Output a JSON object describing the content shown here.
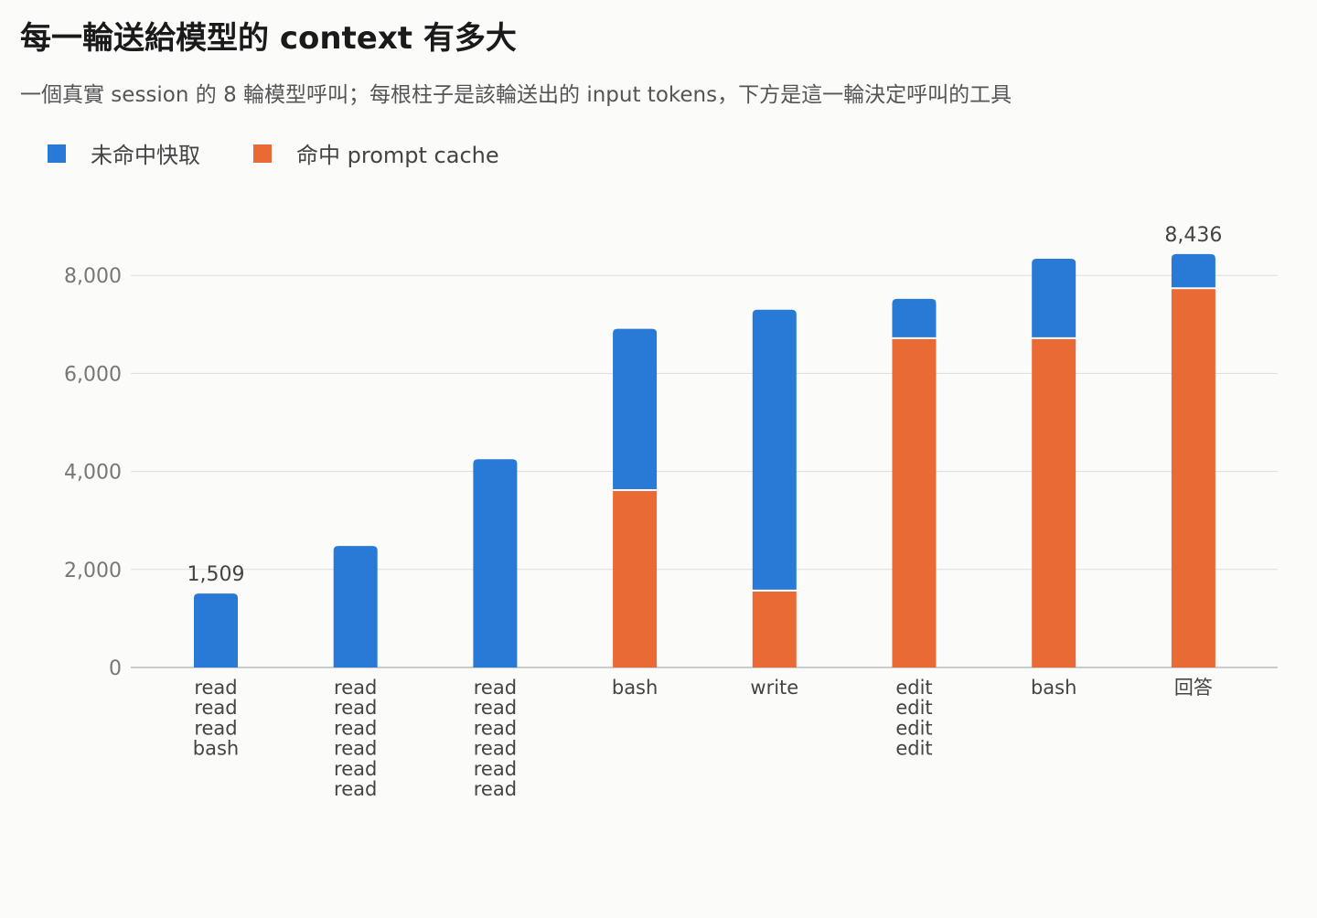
{
  "title": "每一輪送給模型的 context 有多大",
  "subtitle": "一個真實 session 的 8 輪模型呼叫；每根柱子是該輪送出的 input tokens，下方是這一輪決定呼叫的工具",
  "legend": {
    "uncached": "未命中快取",
    "cached": "命中 prompt cache"
  },
  "colors": {
    "uncached": "#2979d6",
    "cached": "#ea6a36",
    "grid": "#dddddd",
    "axis": "#bbbbbb"
  },
  "chart_data": {
    "type": "bar",
    "stacked": true,
    "title": "每一輪送給模型的 context 有多大",
    "subtitle": "一個真實 session 的 8 輪模型呼叫；每根柱子是該輪送出的 input tokens，下方是這一輪決定呼叫的工具",
    "categories": [
      [
        "read",
        "read",
        "read",
        "bash"
      ],
      [
        "read",
        "read",
        "read",
        "read",
        "read",
        "read"
      ],
      [
        "read",
        "read",
        "read",
        "read",
        "read",
        "read"
      ],
      [
        "bash"
      ],
      [
        "write"
      ],
      [
        "edit",
        "edit",
        "edit",
        "edit"
      ],
      [
        "bash"
      ],
      [
        "回答"
      ]
    ],
    "series": [
      {
        "name": "命中 prompt cache",
        "key": "cached",
        "values": [
          0,
          0,
          0,
          3600,
          1550,
          6700,
          6700,
          7720
        ]
      },
      {
        "name": "未命中快取",
        "key": "uncached",
        "values": [
          1509,
          2480,
          4250,
          3310,
          5750,
          820,
          1640,
          716
        ]
      }
    ],
    "total_labels": [
      {
        "index": 0,
        "text": "1,509"
      },
      {
        "index": 7,
        "text": "8,436"
      }
    ],
    "yticks": [
      0,
      2000,
      4000,
      6000,
      8000
    ],
    "ytick_labels": [
      "0",
      "2,000",
      "4,000",
      "6,000",
      "8,000"
    ],
    "ylim": [
      0,
      8700
    ],
    "grid": true,
    "legend_position": "top-left"
  }
}
